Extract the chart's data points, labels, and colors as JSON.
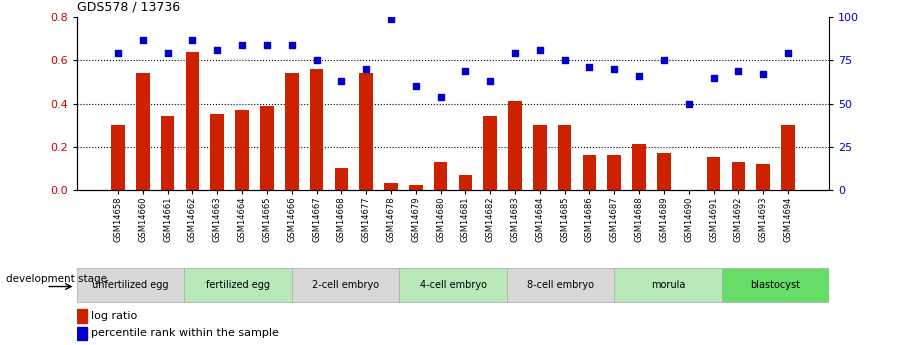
{
  "title": "GDS578 / 13736",
  "samples": [
    "GSM14658",
    "GSM14660",
    "GSM14661",
    "GSM14662",
    "GSM14663",
    "GSM14664",
    "GSM14665",
    "GSM14666",
    "GSM14667",
    "GSM14668",
    "GSM14677",
    "GSM14678",
    "GSM14679",
    "GSM14680",
    "GSM14681",
    "GSM14682",
    "GSM14683",
    "GSM14684",
    "GSM14685",
    "GSM14686",
    "GSM14687",
    "GSM14688",
    "GSM14689",
    "GSM14690",
    "GSM14691",
    "GSM14692",
    "GSM14693",
    "GSM14694"
  ],
  "log_ratio": [
    0.3,
    0.54,
    0.34,
    0.64,
    0.35,
    0.37,
    0.39,
    0.54,
    0.56,
    0.1,
    0.54,
    0.03,
    0.02,
    0.13,
    0.07,
    0.34,
    0.41,
    0.3,
    0.3,
    0.16,
    0.16,
    0.21,
    0.17,
    0.0,
    0.15,
    0.13,
    0.12,
    0.3
  ],
  "percentile_rank": [
    79,
    87,
    79,
    87,
    81,
    84,
    84,
    84,
    75,
    63,
    70,
    99,
    60,
    54,
    69,
    63,
    79,
    81,
    75,
    71,
    70,
    66,
    75,
    50,
    65,
    69,
    67,
    79
  ],
  "bar_color": "#cc2200",
  "scatter_color": "#0000cc",
  "stages": [
    {
      "label": "unfertilized egg",
      "start": 0,
      "end": 4,
      "color": "#d8d8d8"
    },
    {
      "label": "fertilized egg",
      "start": 4,
      "end": 8,
      "color": "#b8e8b8"
    },
    {
      "label": "2-cell embryo",
      "start": 8,
      "end": 12,
      "color": "#d8d8d8"
    },
    {
      "label": "4-cell embryo",
      "start": 12,
      "end": 16,
      "color": "#b8e8b8"
    },
    {
      "label": "8-cell embryo",
      "start": 16,
      "end": 20,
      "color": "#d8d8d8"
    },
    {
      "label": "morula",
      "start": 20,
      "end": 24,
      "color": "#b8e8b8"
    },
    {
      "label": "blastocyst",
      "start": 24,
      "end": 28,
      "color": "#66dd66"
    }
  ],
  "ylim_left": [
    0,
    0.8
  ],
  "ylim_right": [
    0,
    100
  ],
  "yticks_left": [
    0,
    0.2,
    0.4,
    0.6,
    0.8
  ],
  "yticks_right": [
    0,
    25,
    50,
    75,
    100
  ],
  "grid_values": [
    0.2,
    0.4,
    0.6
  ],
  "legend_log_ratio": "log ratio",
  "legend_percentile": "percentile rank within the sample",
  "dev_stage_label": "development stage",
  "background_color": "#ffffff"
}
